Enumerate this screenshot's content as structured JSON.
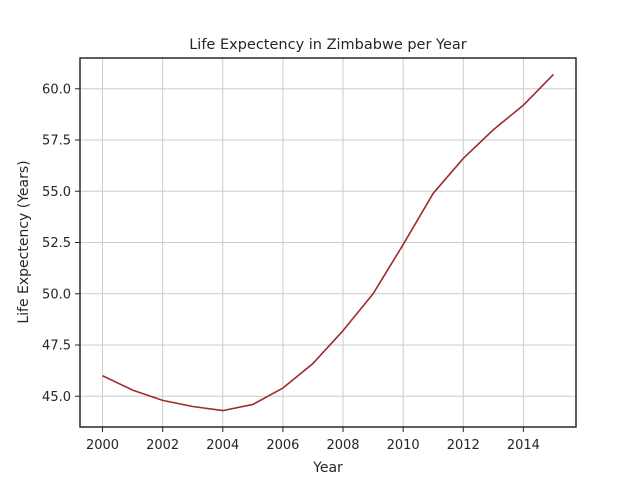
{
  "chart_data": {
    "type": "line",
    "title": "Life Expectency in Zimbabwe per Year",
    "xlabel": "Year",
    "ylabel": "Life Expectency (Years)",
    "xlim": [
      1999.25,
      2015.75
    ],
    "ylim": [
      43.5,
      61.5
    ],
    "xticks": [
      2000,
      2002,
      2004,
      2006,
      2008,
      2010,
      2012,
      2014
    ],
    "yticks": [
      45.0,
      47.5,
      50.0,
      52.5,
      55.0,
      57.5,
      60.0
    ],
    "grid": true,
    "line_color": "#9b2d2d",
    "series": [
      {
        "x": [
          2000,
          2001,
          2002,
          2003,
          2004,
          2005,
          2006,
          2007,
          2008,
          2009,
          2010,
          2011,
          2012,
          2013,
          2014,
          2015
        ],
        "values": [
          46.0,
          45.3,
          44.8,
          44.5,
          44.3,
          44.6,
          45.4,
          46.6,
          48.2,
          50.0,
          52.4,
          54.9,
          56.6,
          58.0,
          59.2,
          60.7
        ]
      }
    ]
  }
}
